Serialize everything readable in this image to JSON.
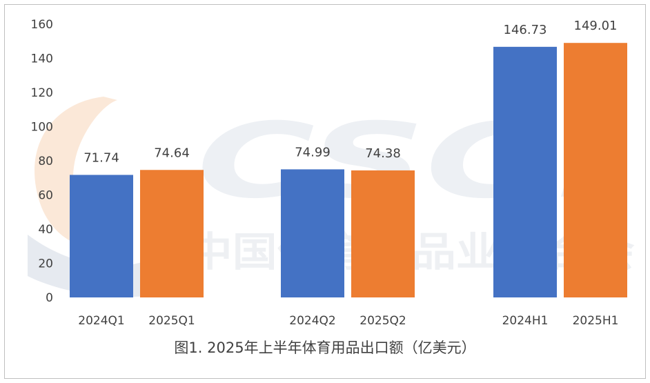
{
  "chart_data": {
    "type": "bar",
    "categories": [
      "2024Q1",
      "2025Q1",
      "2024Q2",
      "2025Q2",
      "2024H1",
      "2025H1"
    ],
    "values": [
      71.74,
      74.64,
      74.99,
      74.38,
      146.73,
      149.01
    ],
    "value_labels": [
      "71.74",
      "74.64",
      "74.99",
      "74.38",
      "146.73",
      "149.01"
    ],
    "bar_colors": [
      "#4472c4",
      "#ed7d31",
      "#4472c4",
      "#ed7d31",
      "#4472c4",
      "#ed7d31"
    ],
    "yticks": [
      "0",
      "20",
      "40",
      "60",
      "80",
      "100",
      "120",
      "140",
      "160"
    ],
    "ylim": [
      0,
      160
    ],
    "grid": false,
    "legend": "none",
    "caption": "图1. 2025年上半年体育用品出口额（亿美元）"
  },
  "watermark": {
    "logo_letters": "CSGI",
    "org_name": "中国体育用品业联合会"
  }
}
